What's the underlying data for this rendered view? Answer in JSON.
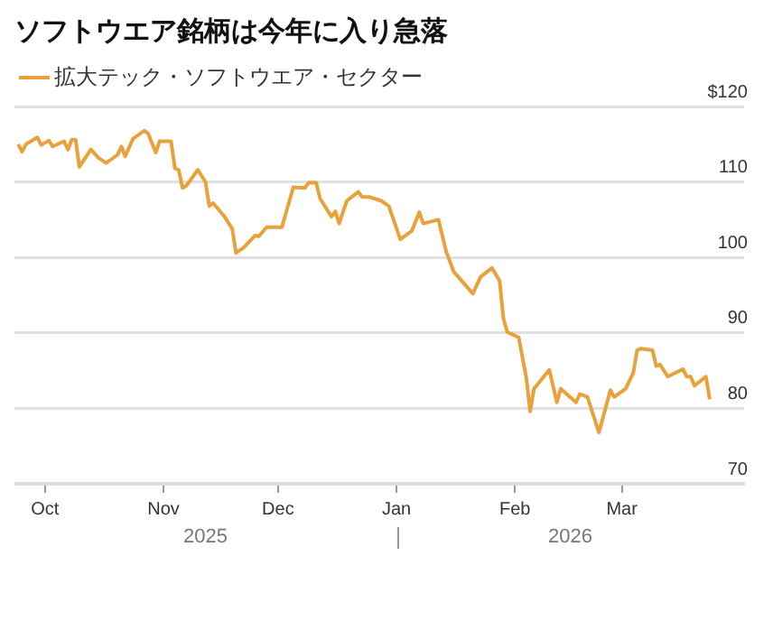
{
  "chart_data": {
    "type": "line",
    "title": "ソフトウエア銘柄は今年に入り急落",
    "x": [
      "2025-09-24",
      "2025-09-25",
      "2025-09-26",
      "2025-09-29",
      "2025-09-30",
      "2025-10-02",
      "2025-10-03",
      "2025-10-06",
      "2025-10-07",
      "2025-10-08",
      "2025-10-09",
      "2025-10-10",
      "2025-10-13",
      "2025-10-15",
      "2025-10-17",
      "2025-10-20",
      "2025-10-21",
      "2025-10-22",
      "2025-10-24",
      "2025-10-27",
      "2025-10-28",
      "2025-10-30",
      "2025-10-31",
      "2025-11-03",
      "2025-11-04",
      "2025-11-05",
      "2025-11-06",
      "2025-11-07",
      "2025-11-10",
      "2025-11-12",
      "2025-11-13",
      "2025-11-14",
      "2025-11-17",
      "2025-11-19",
      "2025-11-20",
      "2025-11-22",
      "2025-11-25",
      "2025-11-26",
      "2025-11-28",
      "2025-12-02",
      "2025-12-05",
      "2025-12-08",
      "2025-12-09",
      "2025-12-11",
      "2025-12-12",
      "2025-12-15",
      "2025-12-16",
      "2025-12-17",
      "2025-12-19",
      "2025-12-22",
      "2025-12-23",
      "2025-12-25",
      "2025-12-28",
      "2025-12-30",
      "2026-01-02",
      "2026-01-05",
      "2026-01-07",
      "2026-01-08",
      "2026-01-12",
      "2026-01-14",
      "2026-01-16",
      "2026-01-21",
      "2026-01-23",
      "2026-01-26",
      "2026-01-28",
      "2026-01-29",
      "2026-01-30",
      "2026-02-02",
      "2026-02-04",
      "2026-02-05",
      "2026-02-06",
      "2026-02-10",
      "2026-02-12",
      "2026-02-13",
      "2026-02-17",
      "2026-02-18",
      "2026-02-20",
      "2026-02-23",
      "2026-02-26",
      "2026-02-27",
      "2026-03-02",
      "2026-03-04",
      "2026-03-05",
      "2026-03-06",
      "2026-03-09",
      "2026-03-10",
      "2026-03-11",
      "2026-03-13",
      "2026-03-17",
      "2026-03-18",
      "2026-03-19",
      "2026-03-20",
      "2026-03-23",
      "2026-03-24"
    ],
    "series": [
      {
        "name": "拡大テック・ソフトウエア・セクター",
        "color": "#e9a23b",
        "values": [
          115.0,
          114.0,
          115.0,
          115.9,
          114.9,
          115.5,
          114.7,
          115.4,
          114.3,
          115.6,
          115.6,
          112.0,
          114.3,
          113.2,
          112.5,
          113.6,
          114.7,
          113.4,
          115.7,
          116.8,
          116.4,
          113.9,
          115.4,
          115.4,
          111.8,
          111.6,
          109.2,
          109.5,
          111.6,
          110.0,
          106.8,
          107.2,
          105.4,
          103.8,
          100.6,
          101.3,
          102.9,
          102.8,
          104.0,
          104.0,
          109.3,
          109.2,
          109.9,
          109.9,
          107.8,
          105.4,
          106.1,
          104.5,
          107.5,
          108.7,
          108.0,
          108.0,
          107.5,
          106.8,
          102.4,
          103.5,
          106.0,
          104.5,
          105.0,
          100.8,
          98.1,
          95.2,
          97.4,
          98.6,
          96.9,
          91.9,
          90.1,
          89.4,
          84.0,
          79.6,
          82.6,
          85.1,
          80.8,
          82.6,
          80.8,
          81.9,
          81.5,
          76.8,
          82.4,
          81.5,
          82.6,
          84.7,
          87.7,
          87.9,
          87.7,
          85.6,
          85.8,
          84.2,
          85.2,
          84.2,
          84.2,
          83.0,
          84.2,
          81.2
        ]
      }
    ],
    "xlim": [
      "2025-09-23",
      "2026-04-02"
    ],
    "xticks": [
      {
        "value": "2025-10-01",
        "label": "Oct"
      },
      {
        "value": "2025-11-01",
        "label": "Nov"
      },
      {
        "value": "2025-12-01",
        "label": "Dec"
      },
      {
        "value": "2026-01-01",
        "label": "Jan"
      },
      {
        "value": "2026-02-01",
        "label": "Feb"
      },
      {
        "value": "2026-03-01",
        "label": "Mar"
      }
    ],
    "ylim": [
      70,
      120
    ],
    "yticks": [
      70,
      80,
      90,
      100,
      110,
      {
        "value": 120,
        "label": "$120"
      }
    ],
    "grid": "y",
    "legend": "top left",
    "marker": "none",
    "line_style": "solid",
    "annotations": [
      "2025",
      "2026"
    ]
  }
}
